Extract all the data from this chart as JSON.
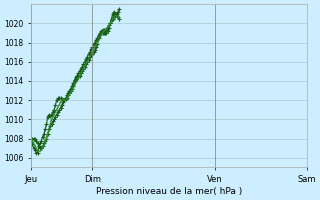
{
  "bg_color": "#cceeff",
  "grid_color": "#aacccc",
  "line_color": "#1a5c1a",
  "line_color2": "#2d8a2d",
  "marker": "+",
  "xlabel": "Pression niveau de la mer( hPa )",
  "ylim": [
    1005,
    1022
  ],
  "yticks": [
    1006,
    1008,
    1010,
    1012,
    1014,
    1016,
    1018,
    1020
  ],
  "day_labels": [
    "Jeu",
    "Dim",
    "Ven",
    "Sam"
  ],
  "day_positions": [
    0,
    48,
    144,
    216
  ],
  "total_points": 264,
  "series1": [
    1008,
    1007.4,
    1007.0,
    1006.8,
    1006.5,
    1006.5,
    1007.2,
    1007.5,
    1007.8,
    1008.2,
    1008.5,
    1009.0,
    1009.5,
    1010.3,
    1010.5,
    1010.4,
    1010.5,
    1010.8,
    1011.0,
    1011.5,
    1012.0,
    1012.2,
    1012.2,
    1012.2,
    1012.1,
    1012.0,
    1012.0,
    1012.1,
    1012.2,
    1012.5,
    1012.8,
    1013.0,
    1013.2,
    1013.5,
    1014.1,
    1014.4,
    1014.5,
    1014.5,
    1014.5,
    1014.8,
    1015.0,
    1015.3,
    1015.5,
    1015.8,
    1016.0,
    1016.2,
    1016.5,
    1016.7,
    1016.8,
    1017.0,
    1017.2,
    1017.5,
    1017.8,
    1018.5,
    1018.8,
    1019.0,
    1019.0,
    1019.0,
    1019.0,
    1019.0,
    1019.2,
    1019.5,
    1020.0,
    1020.5,
    1021.0,
    1021.2,
    1021.0,
    1021.0,
    1021.2,
    1021.5
  ],
  "series2": [
    1008,
    1008.0,
    1008.0,
    1008.0,
    1007.8,
    1007.5,
    1007.2,
    1007.0,
    1007.0,
    1007.2,
    1007.5,
    1007.8,
    1008.0,
    1008.5,
    1009.0,
    1009.3,
    1009.5,
    1009.8,
    1010.0,
    1010.3,
    1010.5,
    1010.8,
    1011.0,
    1011.2,
    1011.5,
    1011.8,
    1012.0,
    1012.2,
    1012.5,
    1012.8,
    1013.0,
    1013.2,
    1013.5,
    1013.8,
    1014.0,
    1014.2,
    1014.5,
    1014.8,
    1015.0,
    1015.3,
    1015.5,
    1015.8,
    1016.0,
    1016.3,
    1016.5,
    1016.8,
    1017.0,
    1017.3,
    1017.5,
    1017.8,
    1018.0,
    1018.3,
    1018.5,
    1018.8,
    1019.0,
    1019.2,
    1019.3,
    1019.3,
    1019.3,
    1019.4,
    1019.5,
    1019.8,
    1020.0,
    1020.3,
    1020.5,
    1020.8,
    1020.8,
    1020.8,
    1020.7,
    1020.5
  ],
  "series3": [
    1008,
    1007.8,
    1007.5,
    1007.3,
    1007.0,
    1006.8,
    1006.7,
    1006.7,
    1006.8,
    1007.0,
    1007.3,
    1007.5,
    1008.0,
    1008.5,
    1009.0,
    1009.5,
    1010.0,
    1010.3,
    1010.5,
    1010.8,
    1011.0,
    1011.3,
    1011.5,
    1011.8,
    1012.0,
    1012.1,
    1012.0,
    1012.0,
    1012.2,
    1012.4,
    1012.6,
    1012.8,
    1013.0,
    1013.3,
    1013.5,
    1013.8,
    1014.0,
    1014.2,
    1014.5,
    1014.8,
    1015.0,
    1015.3,
    1015.5,
    1015.8,
    1016.0,
    1016.3,
    1016.5,
    1016.8,
    1017.0,
    1017.3,
    1017.5,
    1017.8,
    1018.0,
    1018.3,
    1018.5,
    1018.8,
    1019.0,
    1019.2,
    1019.3,
    1019.4,
    1019.6,
    1019.8,
    1020.0,
    1020.2,
    1020.5,
    1020.7,
    1020.8,
    1020.8,
    1020.7,
    1020.5
  ]
}
